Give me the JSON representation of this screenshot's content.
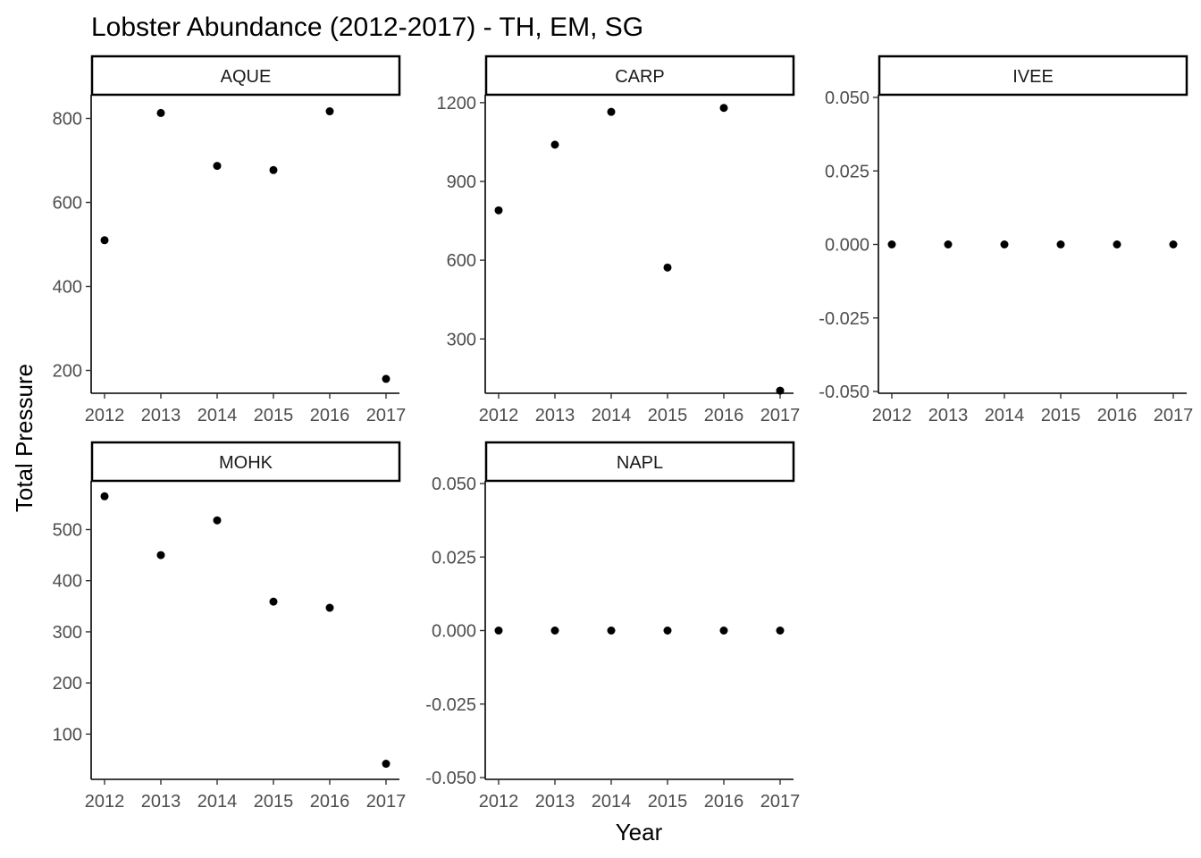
{
  "chart_data": {
    "type": "scatter",
    "title": "Lobster Abundance (2012-2017) - TH, EM, SG",
    "xlabel": "Year",
    "ylabel": "Total Pressure",
    "grid": false,
    "legend": "none",
    "point_color": "#000000",
    "x": [
      2012,
      2013,
      2014,
      2015,
      2016,
      2017
    ],
    "facets": [
      {
        "name": "AQUE",
        "values": [
          510,
          813,
          687,
          677,
          817,
          180
        ],
        "ylim": [
          150,
          850
        ],
        "yticks": [
          200,
          400,
          600,
          800
        ],
        "ytick_labels": [
          "200",
          "400",
          "600",
          "800"
        ]
      },
      {
        "name": "CARP",
        "values": [
          790,
          1040,
          1165,
          572,
          1180,
          103
        ],
        "ylim": [
          100,
          1220
        ],
        "yticks": [
          300,
          600,
          900,
          1200
        ],
        "ytick_labels": [
          "300",
          "600",
          "900",
          "1200"
        ]
      },
      {
        "name": "IVEE",
        "values": [
          0,
          0,
          0,
          0,
          0,
          0
        ],
        "ylim": [
          -0.05,
          0.05
        ],
        "yticks": [
          -0.05,
          -0.025,
          0,
          0.025,
          0.05
        ],
        "ytick_labels": [
          "-0.050",
          "-0.025",
          "0.000",
          "0.025",
          "0.050"
        ]
      },
      {
        "name": "MOHK",
        "values": [
          565,
          450,
          518,
          359,
          347,
          42
        ],
        "ylim": [
          15,
          590
        ],
        "yticks": [
          100,
          200,
          300,
          400,
          500
        ],
        "ytick_labels": [
          "100",
          "200",
          "300",
          "400",
          "500"
        ]
      },
      {
        "name": "NAPL",
        "values": [
          0,
          0,
          0,
          0,
          0,
          0
        ],
        "ylim": [
          -0.05,
          0.05
        ],
        "yticks": [
          -0.05,
          -0.025,
          0,
          0.025,
          0.05
        ],
        "ytick_labels": [
          "-0.050",
          "-0.025",
          "0.000",
          "0.025",
          "0.050"
        ]
      }
    ]
  }
}
